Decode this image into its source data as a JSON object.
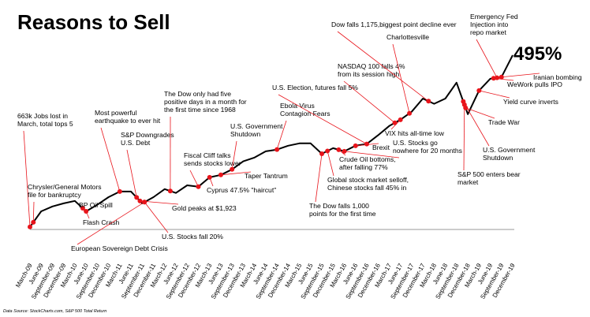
{
  "chart_data": {
    "type": "line",
    "title": "Reasons to Sell",
    "callout": "495%",
    "source": "Data Source: StockCharts.com, S&P 500 Total Return",
    "categories": [
      "March-09",
      "June-09",
      "September-09",
      "December-09",
      "March-10",
      "June-10",
      "September-10",
      "December-10",
      "March-11",
      "June-11",
      "September-11",
      "December-11",
      "March-12",
      "June-12",
      "September-12",
      "December-12",
      "March-13",
      "June-13",
      "September-13",
      "December-13",
      "March-14",
      "June-14",
      "September-14",
      "December-14",
      "March-15",
      "June-15",
      "September-15",
      "December-15",
      "March-16",
      "June-16",
      "September-16",
      "December-16",
      "March-17",
      "June-17",
      "September-17",
      "December-17",
      "March-18",
      "June-18",
      "September-18",
      "December-18",
      "March-19",
      "June-19",
      "September-19",
      "December-19"
    ],
    "values": [
      100,
      145,
      159,
      168,
      175,
      145,
      164,
      186,
      202,
      202,
      168,
      186,
      209,
      198,
      220,
      216,
      243,
      250,
      266,
      289,
      300,
      318,
      323,
      334,
      341,
      341,
      311,
      327,
      318,
      334,
      339,
      364,
      391,
      409,
      432,
      470,
      455,
      470,
      516,
      425,
      493,
      527,
      532,
      595
    ],
    "ylim": [
      60,
      620
    ],
    "color": "#000000",
    "marker_color": "#e8141b",
    "annotations": [
      [
        "663k Jobs lost in",
        "March, total tops 5"
      ],
      [
        "Chrysler/General Motors",
        "file for bankruptcy"
      ],
      [
        "BP Oil Spill"
      ],
      [
        "Flash Crash"
      ],
      [
        "Most powerful",
        "earthquake to ever hit"
      ],
      [
        "S&P Downgrades",
        "U.S. Debt"
      ],
      [
        "European Sovereign Debt Crisis"
      ],
      [
        "U.S. Stocks fall 20%"
      ],
      [
        "Gold peaks at $1,923"
      ],
      [
        "The Dow only had five",
        "positive days in a month for",
        "the first time since 1968"
      ],
      [
        "Fiscal Cliff talks",
        "sends stocks lower"
      ],
      [
        "U.S. Government",
        "Shutdown"
      ],
      [
        "Taper Tantrum"
      ],
      [
        "Cyprus 47.5% \"haircut\""
      ],
      [
        "Ebola Virus",
        "Contagion Fears"
      ],
      [
        "U.S. Election, futures fall 5%"
      ],
      [
        "The Dow falls 1,000",
        "points for the first time"
      ],
      [
        "Global stock market selloff,",
        "Chinese stocks fall 45% in"
      ],
      [
        "Crude Oil bottoms,",
        "after falling 77%"
      ],
      [
        "Brexit"
      ],
      [
        "U.S. Stocks go",
        "nowhere for 20 months"
      ],
      [
        "NASDAQ 100 falls 4%",
        "from its  session high"
      ],
      [
        "VIX hits all-time low"
      ],
      [
        "Charlottesville"
      ],
      [
        "Dow falls 1,175,biggest point decline ever"
      ],
      [
        "Emergency Fed",
        "Injection into",
        "repo market"
      ],
      [
        "Iranian bombing"
      ],
      [
        "WeWork pulls IPO"
      ],
      [
        "Yield curve inverts"
      ],
      [
        "Trade War"
      ],
      [
        "U.S. Government",
        "Shutdown"
      ],
      [
        "S&P 500 enters bear",
        "market"
      ]
    ]
  }
}
